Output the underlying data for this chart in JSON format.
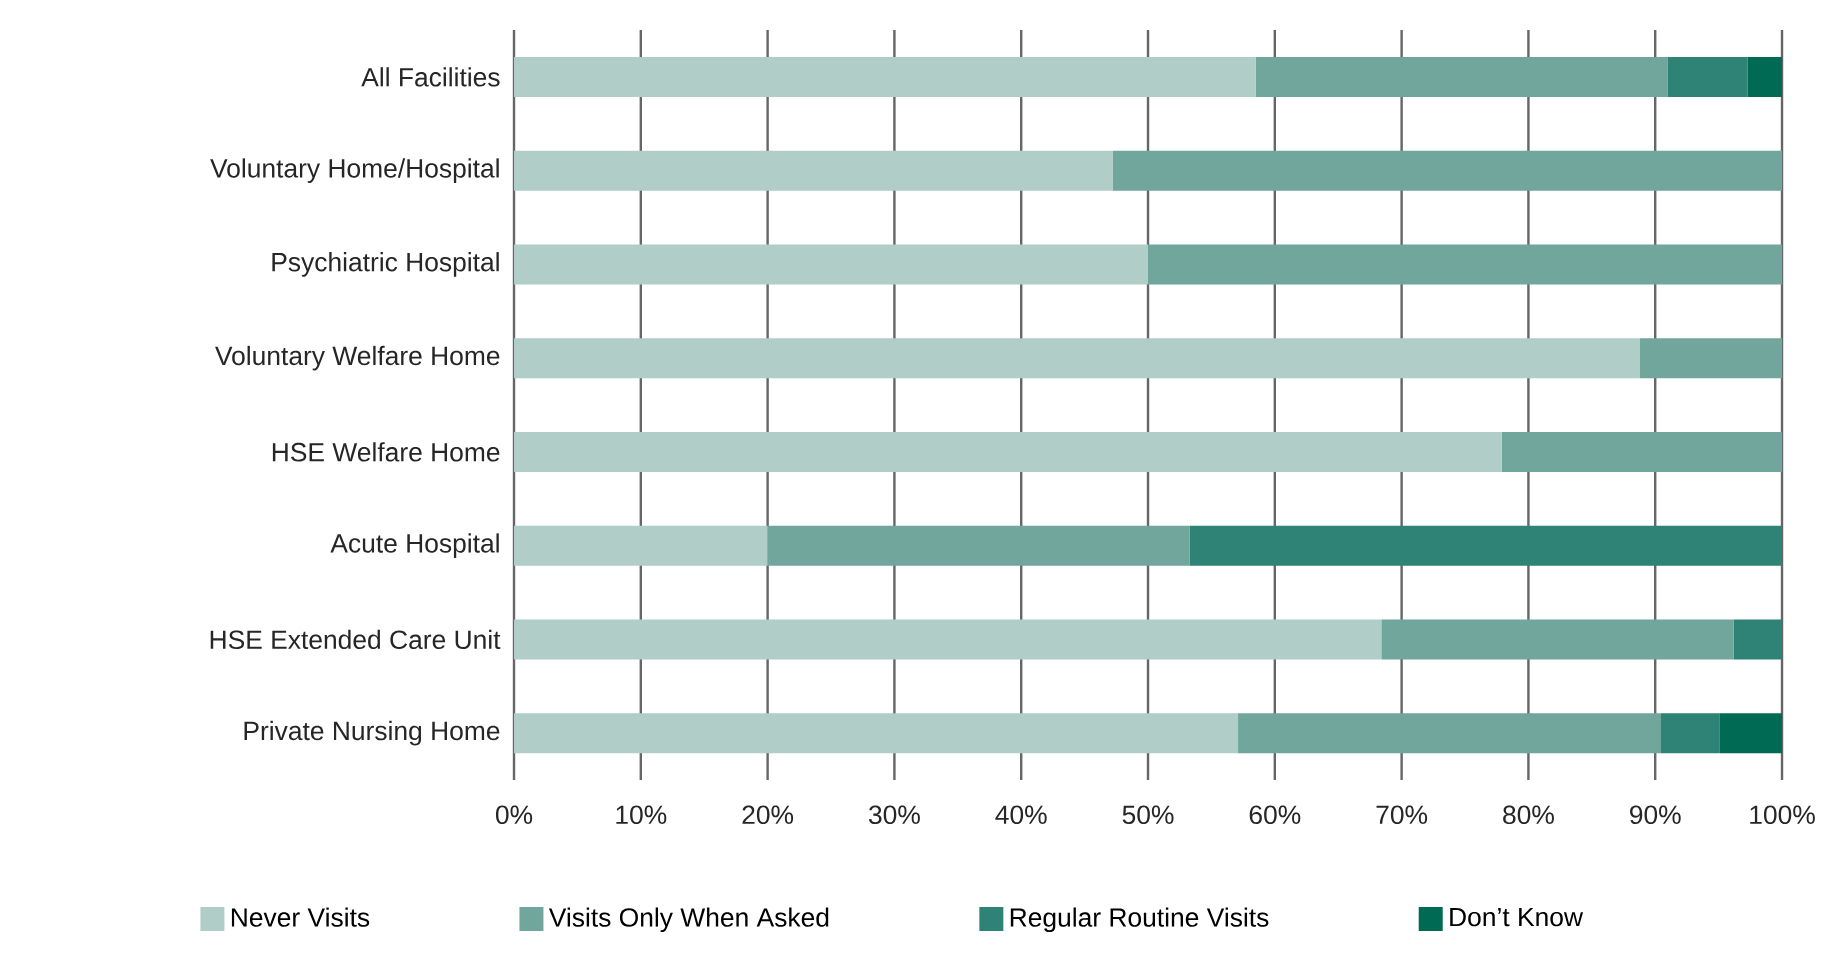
{
  "chart_data": {
    "type": "bar",
    "orientation": "horizontal",
    "stacked": true,
    "categories": [
      "All Facilities",
      "Voluntary Home/Hospital",
      "Psychiatric Hospital",
      "Voluntary Welfare Home",
      "HSE Welfare Home",
      "Acute Hospital",
      "HSE Extended Care Unit",
      "Private Nursing Home"
    ],
    "series": [
      {
        "name": "Never Visits",
        "color": "#b0cdc7",
        "values": [
          58.5,
          47.2,
          50,
          88.8,
          77.9,
          20,
          68.4,
          57.1
        ]
      },
      {
        "name": "Visits Only When Asked",
        "color": "#70a69c",
        "values": [
          32.5,
          52.8,
          50,
          11.2,
          22.1,
          33.3,
          27.8,
          33.3
        ]
      },
      {
        "name": "Regular Routine Visits",
        "color": "#2e8276",
        "values": [
          6.3,
          0,
          0,
          0,
          0,
          46.7,
          3.8,
          4.7
        ]
      },
      {
        "name": "Don’t Know",
        "color": "#006a55",
        "values": [
          2.7,
          0,
          0,
          0,
          0,
          0,
          0,
          4.9
        ]
      }
    ],
    "xlim": [
      0,
      100
    ],
    "xticks": [
      {
        "value": 0,
        "label": "0%"
      },
      {
        "value": 10,
        "label": "10%"
      },
      {
        "value": 20,
        "label": "20%"
      },
      {
        "value": 30,
        "label": "30%"
      },
      {
        "value": 40,
        "label": "40%"
      },
      {
        "value": 50,
        "label": "50%"
      },
      {
        "value": 60,
        "label": "60%"
      },
      {
        "value": 70,
        "label": "70%"
      },
      {
        "value": 80,
        "label": "80%"
      },
      {
        "value": 90,
        "label": "90%"
      },
      {
        "value": 100,
        "label": "100%"
      }
    ],
    "grid": "x",
    "legend": "bottom"
  }
}
